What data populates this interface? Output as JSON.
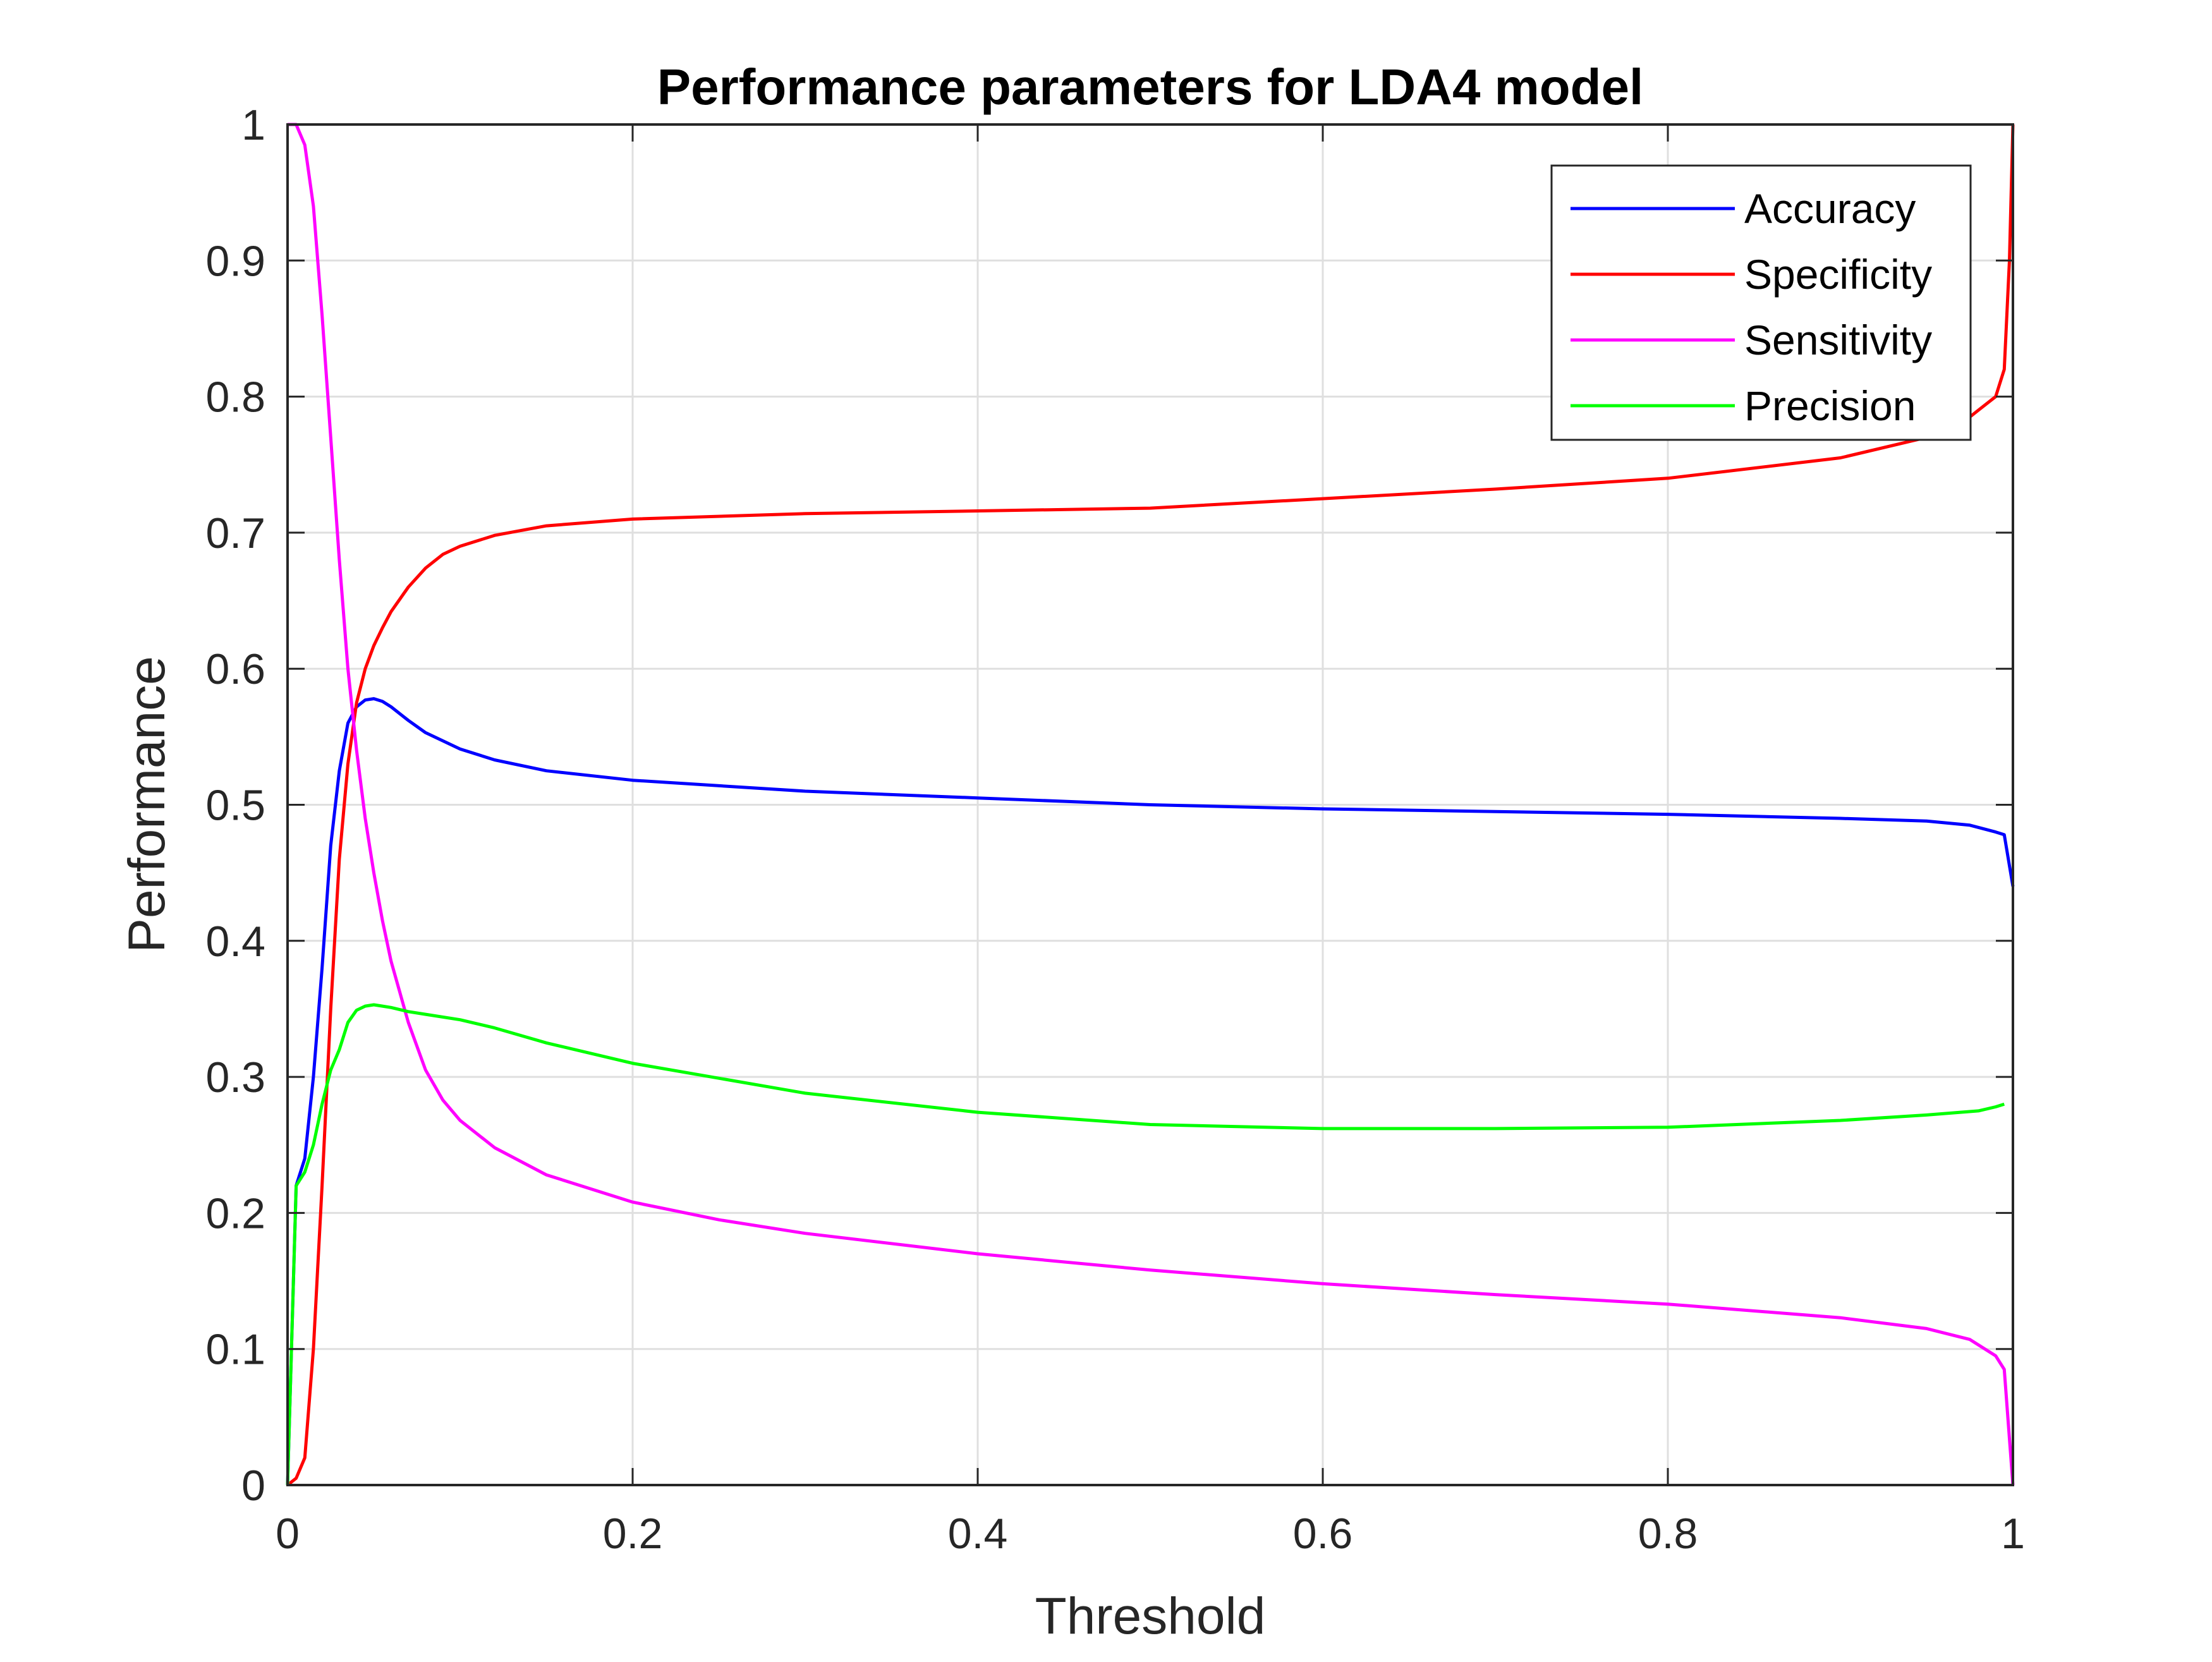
{
  "chart_data": {
    "type": "line",
    "title": "Performance parameters for LDA4 model",
    "xlabel": "Threshold",
    "ylabel": "Performance",
    "xlim": [
      0,
      1
    ],
    "ylim": [
      0,
      1
    ],
    "xticks": [
      0,
      0.2,
      0.4,
      0.6,
      0.8,
      1
    ],
    "xtick_labels": [
      "0",
      "0.2",
      "0.4",
      "0.6",
      "0.8",
      "1"
    ],
    "yticks": [
      0,
      0.1,
      0.2,
      0.3,
      0.4,
      0.5,
      0.6,
      0.7,
      0.8,
      0.9,
      1
    ],
    "ytick_labels": [
      "0",
      "0.1",
      "0.2",
      "0.3",
      "0.4",
      "0.5",
      "0.6",
      "0.7",
      "0.8",
      "0.9",
      "1"
    ],
    "grid": true,
    "legend_position": "top-right",
    "series": [
      {
        "name": "Accuracy",
        "color": "#0000FF",
        "x": [
          0,
          0.005,
          0.01,
          0.015,
          0.02,
          0.025,
          0.03,
          0.035,
          0.04,
          0.045,
          0.05,
          0.055,
          0.06,
          0.07,
          0.08,
          0.1,
          0.12,
          0.15,
          0.2,
          0.3,
          0.4,
          0.5,
          0.6,
          0.7,
          0.8,
          0.9,
          0.95,
          0.975,
          0.99,
          0.995,
          1
        ],
        "y": [
          0,
          0.22,
          0.24,
          0.3,
          0.38,
          0.47,
          0.525,
          0.56,
          0.572,
          0.577,
          0.578,
          0.576,
          0.572,
          0.562,
          0.553,
          0.541,
          0.533,
          0.525,
          0.518,
          0.51,
          0.505,
          0.5,
          0.497,
          0.495,
          0.493,
          0.49,
          0.488,
          0.485,
          0.48,
          0.478,
          0.44
        ]
      },
      {
        "name": "Specificity",
        "color": "#FF0000",
        "x": [
          0,
          0.005,
          0.01,
          0.015,
          0.02,
          0.025,
          0.03,
          0.035,
          0.04,
          0.045,
          0.05,
          0.055,
          0.06,
          0.07,
          0.08,
          0.09,
          0.1,
          0.12,
          0.15,
          0.2,
          0.3,
          0.4,
          0.5,
          0.6,
          0.7,
          0.8,
          0.9,
          0.95,
          0.97,
          0.98,
          0.99,
          0.995,
          0.998,
          1
        ],
        "y": [
          0,
          0.005,
          0.02,
          0.1,
          0.22,
          0.35,
          0.46,
          0.53,
          0.575,
          0.6,
          0.617,
          0.63,
          0.642,
          0.66,
          0.674,
          0.684,
          0.69,
          0.698,
          0.705,
          0.71,
          0.714,
          0.716,
          0.718,
          0.725,
          0.732,
          0.74,
          0.755,
          0.77,
          0.78,
          0.79,
          0.8,
          0.82,
          0.9,
          1.0
        ]
      },
      {
        "name": "Sensitivity",
        "color": "#FF00FF",
        "x": [
          0,
          0.005,
          0.01,
          0.015,
          0.02,
          0.025,
          0.03,
          0.035,
          0.04,
          0.045,
          0.05,
          0.055,
          0.06,
          0.07,
          0.08,
          0.09,
          0.1,
          0.12,
          0.15,
          0.2,
          0.25,
          0.3,
          0.4,
          0.5,
          0.6,
          0.7,
          0.8,
          0.9,
          0.95,
          0.975,
          0.99,
          0.995,
          1
        ],
        "y": [
          1.0,
          1.0,
          0.985,
          0.94,
          0.86,
          0.77,
          0.68,
          0.6,
          0.54,
          0.49,
          0.45,
          0.415,
          0.385,
          0.34,
          0.305,
          0.283,
          0.268,
          0.248,
          0.228,
          0.208,
          0.195,
          0.185,
          0.17,
          0.158,
          0.148,
          0.14,
          0.133,
          0.123,
          0.115,
          0.107,
          0.095,
          0.085,
          0
        ]
      },
      {
        "name": "Precision",
        "color": "#00FF00",
        "x": [
          0,
          0.005,
          0.01,
          0.015,
          0.02,
          0.025,
          0.03,
          0.035,
          0.04,
          0.045,
          0.05,
          0.055,
          0.06,
          0.07,
          0.08,
          0.1,
          0.12,
          0.15,
          0.2,
          0.3,
          0.4,
          0.5,
          0.6,
          0.7,
          0.8,
          0.9,
          0.95,
          0.98,
          0.99,
          0.995
        ],
        "y": [
          0,
          0.22,
          0.23,
          0.25,
          0.28,
          0.305,
          0.32,
          0.34,
          0.349,
          0.352,
          0.353,
          0.352,
          0.351,
          0.348,
          0.346,
          0.342,
          0.336,
          0.325,
          0.31,
          0.288,
          0.274,
          0.265,
          0.262,
          0.262,
          0.263,
          0.268,
          0.272,
          0.275,
          0.278,
          0.28
        ]
      }
    ]
  }
}
